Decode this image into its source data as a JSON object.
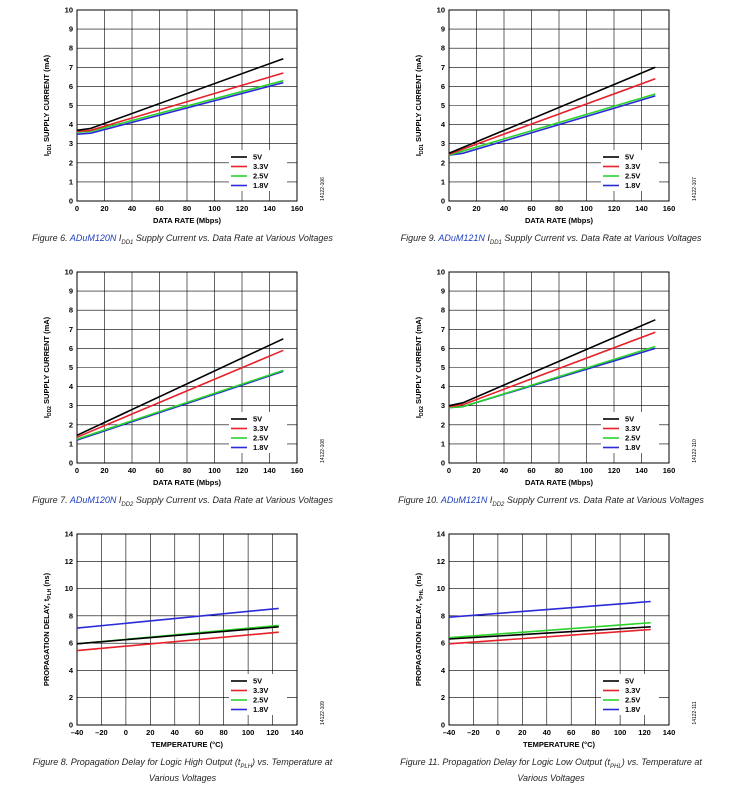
{
  "legend_labels": [
    "5V",
    "3.3V",
    "2.5V",
    "1.8V"
  ],
  "colors": {
    "5V": "#000000",
    "3.3V": "#e8202a",
    "2.5V": "#2bd22b",
    "1.8V": "#2a2ad8"
  },
  "chart_data": [
    {
      "id": "fig6",
      "type": "line",
      "ylabel_main": "I",
      "ylabel_sub": "DD1",
      "ylabel_rest": " SUPPLY CURRENT (mA)",
      "xlabel": "DATA RATE (Mbps)",
      "xticks": [
        0,
        20,
        40,
        60,
        80,
        100,
        120,
        140,
        160
      ],
      "yticks": [
        0,
        1,
        2,
        3,
        4,
        5,
        6,
        7,
        8,
        9,
        10
      ],
      "xlim": [
        0,
        160
      ],
      "ylim": [
        0,
        10
      ],
      "fig_id": "14122-106",
      "caption": {
        "prefix": "Figure 6. ",
        "part": "ADuM120N",
        "sub": " I",
        "subscript": "DD1",
        "suffix": " Supply Current vs. Data Rate at Various Voltages"
      },
      "series": [
        {
          "name": "5V",
          "points": [
            [
              0,
              3.7
            ],
            [
              10,
              3.8
            ],
            [
              150,
              7.45
            ]
          ]
        },
        {
          "name": "3.3V",
          "points": [
            [
              0,
              3.65
            ],
            [
              10,
              3.7
            ],
            [
              150,
              6.7
            ]
          ]
        },
        {
          "name": "2.5V",
          "points": [
            [
              0,
              3.6
            ],
            [
              10,
              3.65
            ],
            [
              150,
              6.3
            ]
          ]
        },
        {
          "name": "1.8V",
          "points": [
            [
              0,
              3.5
            ],
            [
              10,
              3.55
            ],
            [
              150,
              6.2
            ]
          ]
        }
      ]
    },
    {
      "id": "fig9",
      "type": "line",
      "ylabel_main": "I",
      "ylabel_sub": "DD1",
      "ylabel_rest": " SUPPLY CURRENT (mA)",
      "xlabel": "DATA RATE (Mbps)",
      "xticks": [
        0,
        20,
        40,
        60,
        80,
        100,
        120,
        140,
        160
      ],
      "yticks": [
        0,
        1,
        2,
        3,
        4,
        5,
        6,
        7,
        8,
        9,
        10
      ],
      "xlim": [
        0,
        160
      ],
      "ylim": [
        0,
        10
      ],
      "fig_id": "14122-107",
      "caption": {
        "prefix": "Figure 9. ",
        "part": "ADuM121N",
        "sub": " I",
        "subscript": "DD1",
        "suffix": " Supply Current vs. Data Rate at Various Voltages"
      },
      "series": [
        {
          "name": "5V",
          "points": [
            [
              0,
              2.5
            ],
            [
              150,
              7.0
            ]
          ]
        },
        {
          "name": "3.3V",
          "points": [
            [
              0,
              2.45
            ],
            [
              150,
              6.4
            ]
          ]
        },
        {
          "name": "2.5V",
          "points": [
            [
              0,
              2.4
            ],
            [
              150,
              5.6
            ]
          ]
        },
        {
          "name": "1.8V",
          "points": [
            [
              0,
              2.4
            ],
            [
              10,
              2.5
            ],
            [
              150,
              5.5
            ]
          ]
        }
      ]
    },
    {
      "id": "fig7",
      "type": "line",
      "ylabel_main": "I",
      "ylabel_sub": "DD2",
      "ylabel_rest": " SUPPLY CURRENT (mA)",
      "xlabel": "DATA RATE (Mbps)",
      "xticks": [
        0,
        20,
        40,
        60,
        80,
        100,
        120,
        140,
        160
      ],
      "yticks": [
        0,
        1,
        2,
        3,
        4,
        5,
        6,
        7,
        8,
        9,
        10
      ],
      "xlim": [
        0,
        160
      ],
      "ylim": [
        0,
        10
      ],
      "fig_id": "14122-108",
      "caption": {
        "prefix": "Figure 7. ",
        "part": "ADuM120N",
        "sub": " I",
        "subscript": "DD2",
        "suffix": " Supply Current vs. Data Rate at Various Voltages"
      },
      "series": [
        {
          "name": "5V",
          "points": [
            [
              0,
              1.45
            ],
            [
              150,
              6.5
            ]
          ]
        },
        {
          "name": "3.3V",
          "points": [
            [
              0,
              1.35
            ],
            [
              150,
              5.9
            ]
          ]
        },
        {
          "name": "2.5V",
          "points": [
            [
              0,
              1.25
            ],
            [
              150,
              4.85
            ]
          ]
        },
        {
          "name": "1.8V",
          "points": [
            [
              0,
              1.2
            ],
            [
              150,
              4.8
            ]
          ]
        }
      ]
    },
    {
      "id": "fig10",
      "type": "line",
      "ylabel_main": "I",
      "ylabel_sub": "DD2",
      "ylabel_rest": " SUPPLY CURRENT (mA)",
      "xlabel": "DATA RATE (Mbps)",
      "xticks": [
        0,
        20,
        40,
        60,
        80,
        100,
        120,
        140,
        160
      ],
      "yticks": [
        0,
        1,
        2,
        3,
        4,
        5,
        6,
        7,
        8,
        9,
        10
      ],
      "xlim": [
        0,
        160
      ],
      "ylim": [
        0,
        10
      ],
      "fig_id": "14122-110",
      "caption": {
        "prefix": "Figure 10. ",
        "part": "ADuM121N",
        "sub": " I",
        "subscript": "DD2",
        "suffix": " Supply Current vs. Data Rate at Various Voltages"
      },
      "series": [
        {
          "name": "5V",
          "points": [
            [
              0,
              3.0
            ],
            [
              10,
              3.15
            ],
            [
              150,
              7.5
            ]
          ]
        },
        {
          "name": "3.3V",
          "points": [
            [
              0,
              2.95
            ],
            [
              10,
              3.05
            ],
            [
              150,
              6.85
            ]
          ]
        },
        {
          "name": "2.5V",
          "points": [
            [
              0,
              2.9
            ],
            [
              10,
              2.95
            ],
            [
              150,
              6.1
            ]
          ]
        },
        {
          "name": "1.8V",
          "points": [
            [
              0,
              2.9
            ],
            [
              10,
              2.95
            ],
            [
              150,
              6.0
            ]
          ]
        }
      ]
    },
    {
      "id": "fig8",
      "type": "line",
      "ylabel_main": "PROPAGATION DELAY, t",
      "ylabel_sub": "PLH",
      "ylabel_rest": " (ns)",
      "xlabel": "TEMPERATURE (°C)",
      "xticks": [
        -40,
        -20,
        0,
        20,
        40,
        60,
        80,
        100,
        120,
        140
      ],
      "xtick_labels": [
        "–40",
        "–20",
        "0",
        "20",
        "40",
        "60",
        "80",
        "100",
        "120",
        "140"
      ],
      "yticks": [
        0,
        2,
        4,
        6,
        8,
        10,
        12,
        14
      ],
      "xlim": [
        -40,
        140
      ],
      "ylim": [
        0,
        14
      ],
      "fig_id": "14122-109",
      "caption": {
        "prefix": "Figure 8. Propagation Delay for Logic High Output (t",
        "part": "",
        "sub": "",
        "subscript": "PLH",
        "suffix": ") vs. Temperature at",
        "line2": "Various Voltages"
      },
      "series": [
        {
          "name": "5V",
          "points": [
            [
              -40,
              5.95
            ],
            [
              125,
              7.2
            ]
          ]
        },
        {
          "name": "3.3V",
          "points": [
            [
              -40,
              5.45
            ],
            [
              125,
              6.8
            ]
          ]
        },
        {
          "name": "2.5V",
          "points": [
            [
              -40,
              5.95
            ],
            [
              125,
              7.3
            ]
          ]
        },
        {
          "name": "1.8V",
          "points": [
            [
              -40,
              7.1
            ],
            [
              125,
              8.55
            ]
          ]
        }
      ]
    },
    {
      "id": "fig11",
      "type": "line",
      "ylabel_main": "PROPAGATION DELAY, t",
      "ylabel_sub": "PHL",
      "ylabel_rest": " (ns)",
      "xlabel": "TEMPERATURE (°C)",
      "xticks": [
        -40,
        -20,
        0,
        20,
        40,
        60,
        80,
        100,
        120,
        140
      ],
      "xtick_labels": [
        "–40",
        "–20",
        "0",
        "20",
        "40",
        "60",
        "80",
        "100",
        "120",
        "140"
      ],
      "yticks": [
        0,
        2,
        4,
        6,
        8,
        10,
        12,
        14
      ],
      "xlim": [
        -40,
        140
      ],
      "ylim": [
        0,
        14
      ],
      "fig_id": "14122-111",
      "caption": {
        "prefix": "Figure 11. Propagation Delay for Logic Low Output (t",
        "part": "",
        "sub": "",
        "subscript": "PHL",
        "suffix": ") vs. Temperature at",
        "line2": "Various Voltages"
      },
      "series": [
        {
          "name": "5V",
          "points": [
            [
              -40,
              6.3
            ],
            [
              125,
              7.2
            ]
          ]
        },
        {
          "name": "3.3V",
          "points": [
            [
              -40,
              5.95
            ],
            [
              125,
              7.0
            ]
          ]
        },
        {
          "name": "2.5V",
          "points": [
            [
              -40,
              6.4
            ],
            [
              125,
              7.5
            ]
          ]
        },
        {
          "name": "1.8V",
          "points": [
            [
              -40,
              7.9
            ],
            [
              125,
              9.05
            ]
          ]
        }
      ]
    }
  ]
}
